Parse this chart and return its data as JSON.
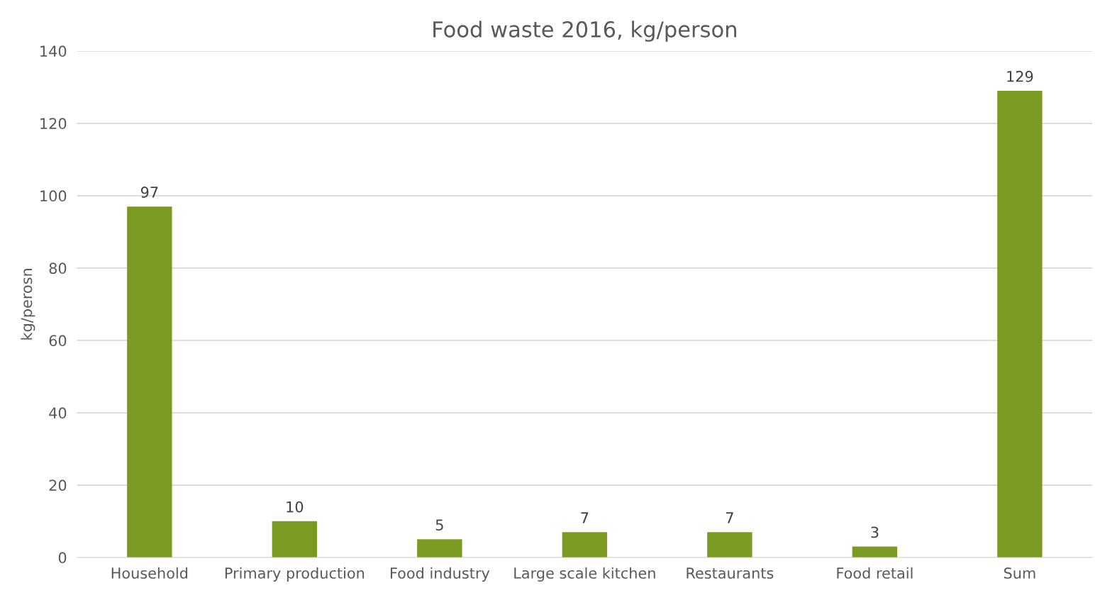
{
  "chart_data": {
    "type": "bar",
    "title": "Food waste 2016, kg/person",
    "ylabel": "kg/perosn",
    "categories": [
      "Household",
      "Primary production",
      "Food industry",
      "Large scale kitchen",
      "Restaurants",
      "Food retail",
      "Sum"
    ],
    "values": [
      97,
      10,
      5,
      7,
      7,
      3,
      129
    ],
    "color": "#7a9a21",
    "ylim": [
      0,
      140
    ],
    "yticks": [
      0,
      20,
      40,
      60,
      80,
      100,
      120,
      140
    ],
    "grid": "y",
    "data_labels": true,
    "legend": false
  }
}
